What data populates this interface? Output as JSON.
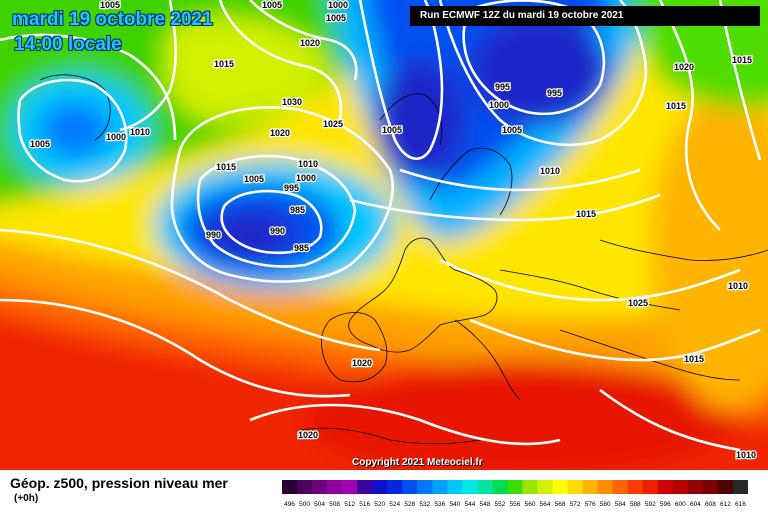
{
  "title": {
    "date": "mardi 19 octobre 2021",
    "time": "14:00 locale"
  },
  "run_banner": "Run ECMWF 12Z du mardi 19 octobre 2021",
  "copyright": "Copyright 2021 Meteociel.fr",
  "legend": {
    "title": "Géop. z500, pression niveau mer",
    "subtitle": "(+0h)",
    "scale_labels": [
      "496",
      "500",
      "504",
      "508",
      "512",
      "516",
      "520",
      "524",
      "528",
      "532",
      "536",
      "540",
      "544",
      "548",
      "552",
      "556",
      "560",
      "564",
      "568",
      "572",
      "576",
      "580",
      "584",
      "588",
      "592",
      "596",
      "600",
      "604",
      "608",
      "612",
      "616"
    ],
    "scale_colors": [
      "#2a0030",
      "#4b0060",
      "#6e0080",
      "#8f00a0",
      "#a000b5",
      "#3c00a0",
      "#1010c8",
      "#0028e0",
      "#0050f0",
      "#0078ff",
      "#00a0ff",
      "#00c8ff",
      "#00e6e6",
      "#00e6a0",
      "#00dc50",
      "#3cdc00",
      "#96e600",
      "#d2f000",
      "#ffff00",
      "#ffdc00",
      "#ffb400",
      "#ff8c00",
      "#ff6400",
      "#ff3c00",
      "#f01e00",
      "#d20000",
      "#b40000",
      "#960000",
      "#780000",
      "#500000",
      "#282828"
    ]
  },
  "map": {
    "colors": {
      "ocean_deep_green": "#1ec850",
      "warm_red": "#f02000",
      "orange": "#ff8c00",
      "yellow": "#ffe600",
      "green": "#3cd200",
      "cyan": "#00dcf0",
      "blue": "#0050e6",
      "deep_blue": "#1e28c8"
    },
    "isobar_labels": [
      "1005",
      "1000",
      "1005",
      "1005",
      "1020",
      "1015",
      "1030",
      "1020",
      "1025",
      "1005",
      "1000",
      "1010",
      "1015",
      "1005",
      "1010",
      "1000",
      "995",
      "985",
      "990",
      "990",
      "985",
      "1005",
      "995",
      "995",
      "1000",
      "1005",
      "1010",
      "1015",
      "1020",
      "1015",
      "1015",
      "1010",
      "1025",
      "1015",
      "1020",
      "1020",
      "1010"
    ]
  }
}
